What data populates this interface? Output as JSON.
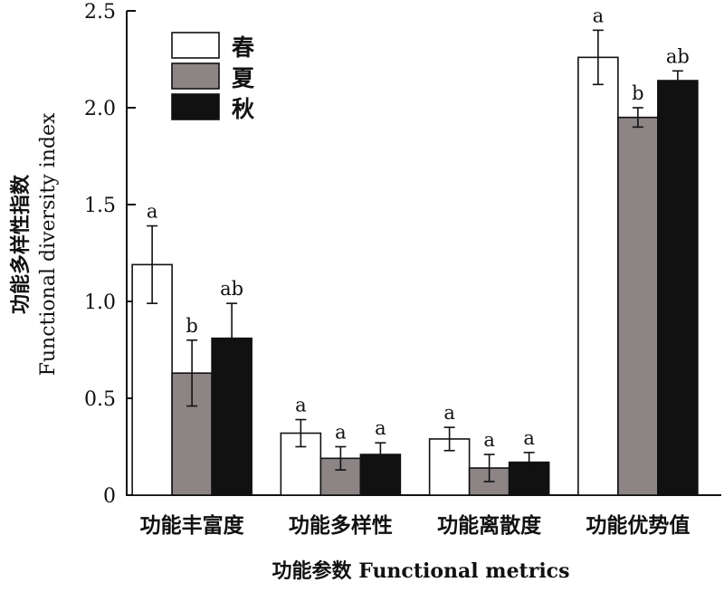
{
  "chart_data": {
    "type": "bar",
    "categories": [
      "功能丰富度",
      "功能多样性",
      "功能离散度",
      "功能优势值"
    ],
    "series": [
      {
        "name": "春",
        "color": "#ffffff",
        "values": [
          1.19,
          0.32,
          0.29,
          2.26
        ],
        "errors": [
          0.2,
          0.07,
          0.06,
          0.14
        ],
        "letters": [
          "a",
          "a",
          "a",
          "a"
        ]
      },
      {
        "name": "夏",
        "color": "#8c8485",
        "values": [
          0.63,
          0.19,
          0.14,
          1.95
        ],
        "errors": [
          0.17,
          0.06,
          0.07,
          0.05
        ],
        "letters": [
          "b",
          "a",
          "a",
          "b"
        ]
      },
      {
        "name": "秋",
        "color": "#111111",
        "values": [
          0.81,
          0.21,
          0.17,
          2.14
        ],
        "errors": [
          0.18,
          0.06,
          0.05,
          0.05
        ],
        "letters": [
          "ab",
          "a",
          "a",
          "ab"
        ]
      }
    ],
    "ylim": [
      0,
      2.5
    ],
    "yticks": [
      "0",
      "0.5",
      "1.0",
      "1.5",
      "2.0",
      "2.5"
    ],
    "ylabel_cn": "功能多样性指数",
    "ylabel_en": "Functional diversity index",
    "xlabel": "功能参数 Functional metrics",
    "legend_position": "top-left",
    "grid": false
  }
}
